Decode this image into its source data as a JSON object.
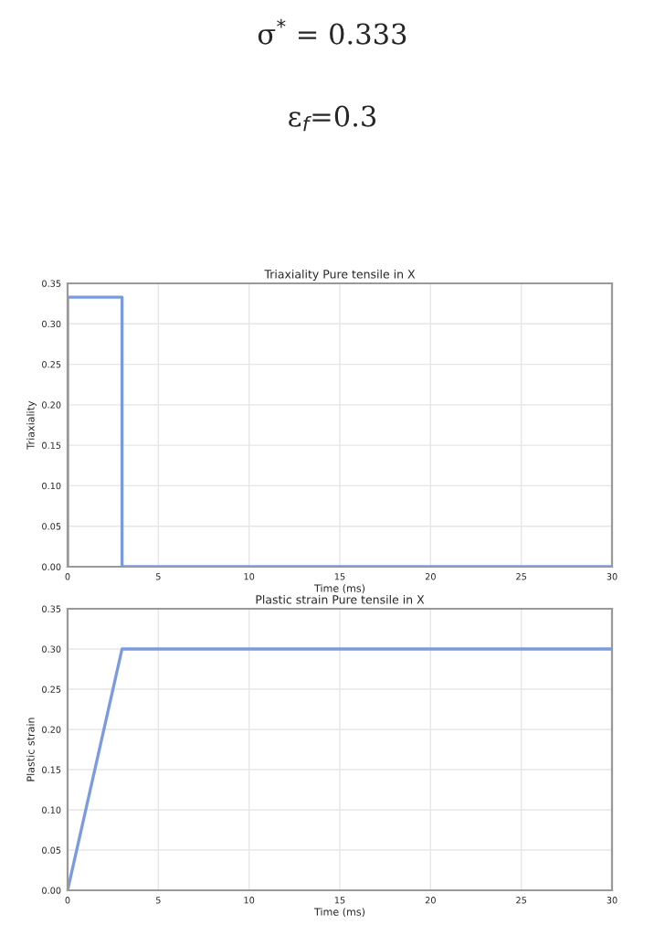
{
  "chart_data": [
    {
      "type": "line",
      "title": "Triaxiality Pure tensile in X",
      "xlabel": "Time (ms)",
      "ylabel": "Triaxiality",
      "annotations": [
        "σ$^{*}$ = 0.333",
        "ε$_{f}$=0.3"
      ],
      "x": [
        0,
        0,
        3,
        3,
        30
      ],
      "series": [
        {
          "color": "#7b9be0",
          "values": [
            0,
            0.333,
            0.333,
            0,
            0
          ]
        }
      ],
      "xlim": [
        0,
        30
      ],
      "xticks": [
        0,
        5,
        10,
        15,
        20,
        25,
        30
      ],
      "ylim": [
        0,
        0.35
      ],
      "yticks": [
        {
          "value": 0,
          "label": "0.00"
        },
        {
          "value": 0.05,
          "label": "0.05"
        },
        {
          "value": 0.1,
          "label": "0.10"
        },
        {
          "value": 0.15,
          "label": "0.15"
        },
        {
          "value": 0.2,
          "label": "0.20"
        },
        {
          "value": 0.25,
          "label": "0.25"
        },
        {
          "value": 0.3,
          "label": "0.30"
        },
        {
          "value": 0.35,
          "label": "0.35"
        }
      ],
      "grid": true
    },
    {
      "type": "line",
      "title": "Plastic strain Pure tensile in X",
      "xlabel": "Time (ms)",
      "ylabel": "Plastic strain",
      "x": [
        0,
        3,
        30
      ],
      "series": [
        {
          "color": "#7b9be0",
          "values": [
            0,
            0.3,
            0.3
          ]
        }
      ],
      "xlim": [
        0,
        30
      ],
      "xticks": [
        0,
        5,
        10,
        15,
        20,
        25,
        30
      ],
      "ylim": [
        0,
        0.35
      ],
      "yticks": [
        {
          "value": 0,
          "label": "0.00"
        },
        {
          "value": 0.05,
          "label": "0.05"
        },
        {
          "value": 0.1,
          "label": "0.10"
        },
        {
          "value": 0.15,
          "label": "0.15"
        },
        {
          "value": 0.2,
          "label": "0.20"
        },
        {
          "value": 0.25,
          "label": "0.25"
        },
        {
          "value": 0.3,
          "label": "0.30"
        },
        {
          "value": 0.35,
          "label": "0.35"
        }
      ],
      "grid": true
    }
  ]
}
